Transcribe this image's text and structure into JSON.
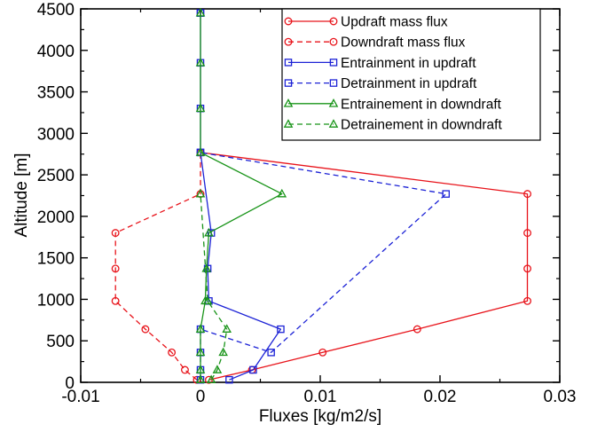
{
  "chart_data": {
    "type": "line",
    "title": "",
    "xlabel": "Fluxes [kg/m2/s]",
    "ylabel": "Altitude [m]",
    "xlim": [
      -0.01,
      0.03
    ],
    "ylim": [
      0,
      4500
    ],
    "xticks": [
      -0.01,
      0,
      0.01,
      0.02,
      0.03
    ],
    "xtick_labels": [
      "-0.01",
      "0",
      "0.01",
      "0.02",
      "0.03"
    ],
    "yticks": [
      0,
      500,
      1000,
      1500,
      2000,
      2500,
      3000,
      3500,
      4000,
      4500
    ],
    "ytick_labels": [
      "0",
      "500",
      "1000",
      "1500",
      "2000",
      "2500",
      "3000",
      "3500",
      "4000",
      "4500"
    ],
    "grid": false,
    "legend_position": "top-right",
    "series": [
      {
        "name": "Updraft mass flux",
        "color": "#e8141b",
        "dash": "solid",
        "marker": "circle",
        "x": [
          0.0007,
          0.0043,
          0.0102,
          0.0181,
          0.0273,
          0.0273,
          0.0273,
          0.0273,
          0.0
        ],
        "y": [
          30,
          150,
          360,
          640,
          980,
          1370,
          1800,
          2270,
          2770
        ]
      },
      {
        "name": "Downdraft mass flux",
        "color": "#e8141b",
        "dash": "dashed",
        "marker": "circle",
        "x": [
          -0.0003,
          -0.0013,
          -0.0024,
          -0.0046,
          -0.0071,
          -0.0071,
          -0.0071,
          0.0,
          0.0
        ],
        "y": [
          30,
          150,
          360,
          640,
          980,
          1370,
          1800,
          2270,
          2770
        ]
      },
      {
        "name": "Entrainment in updraft",
        "color": "#1c22d6",
        "dash": "solid",
        "marker": "square",
        "x": [
          0.0024,
          0.0044,
          0.0067,
          0.0007,
          0.0006,
          0.0009,
          0.0,
          0.0,
          0.0,
          0.0,
          0.0
        ],
        "y": [
          30,
          150,
          640,
          980,
          1370,
          1800,
          2770,
          3300,
          3850,
          4450,
          4450
        ]
      },
      {
        "name": "Detrainment in updraft",
        "color": "#1c22d6",
        "dash": "dashed",
        "marker": "square",
        "x": [
          0.0,
          0.0,
          0.0,
          0.0,
          0.0059,
          0.0205,
          0.0
        ],
        "y": [
          30,
          150,
          360,
          640,
          360,
          2270,
          2770
        ]
      },
      {
        "name": "Entrainement in downdraft",
        "color": "#199419",
        "dash": "solid",
        "marker": "triangle",
        "x": [
          0.0,
          0.0,
          0.0,
          0.0,
          0.0004,
          0.0005,
          0.0007,
          0.0068,
          0.0,
          0.0,
          0.0,
          0.0
        ],
        "y": [
          30,
          150,
          360,
          640,
          980,
          1370,
          1800,
          2270,
          2770,
          3300,
          3850,
          4450
        ]
      },
      {
        "name": "Detrainement in downdraft",
        "color": "#199419",
        "dash": "dashed",
        "marker": "triangle",
        "x": [
          0.0009,
          0.0014,
          0.0019,
          0.0022,
          0.0006,
          0.0
        ],
        "y": [
          30,
          150,
          360,
          640,
          980,
          2270
        ]
      }
    ]
  }
}
